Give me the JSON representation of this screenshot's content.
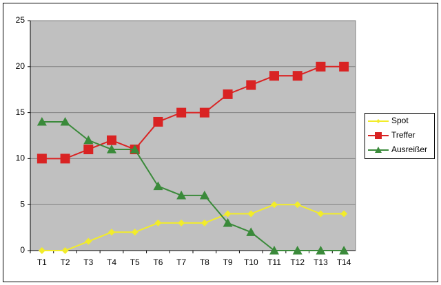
{
  "chart_data": {
    "type": "line",
    "categories": [
      "T1",
      "T2",
      "T3",
      "T4",
      "T5",
      "T6",
      "T7",
      "T8",
      "T9",
      "T10",
      "T11",
      "T12",
      "T13",
      "T14"
    ],
    "series": [
      {
        "name": "Spot",
        "color": "#f2ec2a",
        "marker": "diamond",
        "values": [
          0,
          0,
          1,
          2,
          2,
          3,
          3,
          3,
          4,
          4,
          5,
          5,
          4,
          4
        ]
      },
      {
        "name": "Treffer",
        "color": "#d92323",
        "marker": "square",
        "values": [
          10,
          10,
          11,
          12,
          11,
          14,
          15,
          15,
          17,
          18,
          19,
          19,
          20,
          20
        ]
      },
      {
        "name": "Ausreißer",
        "color": "#3a8a3a",
        "marker": "triangle",
        "values": [
          14,
          14,
          12,
          11,
          11,
          7,
          6,
          6,
          3,
          2,
          0,
          0,
          0,
          0
        ]
      }
    ],
    "ylim": [
      0,
      25
    ],
    "yticks": [
      0,
      5,
      10,
      15,
      20,
      25
    ],
    "grid": true,
    "legend": "right"
  }
}
